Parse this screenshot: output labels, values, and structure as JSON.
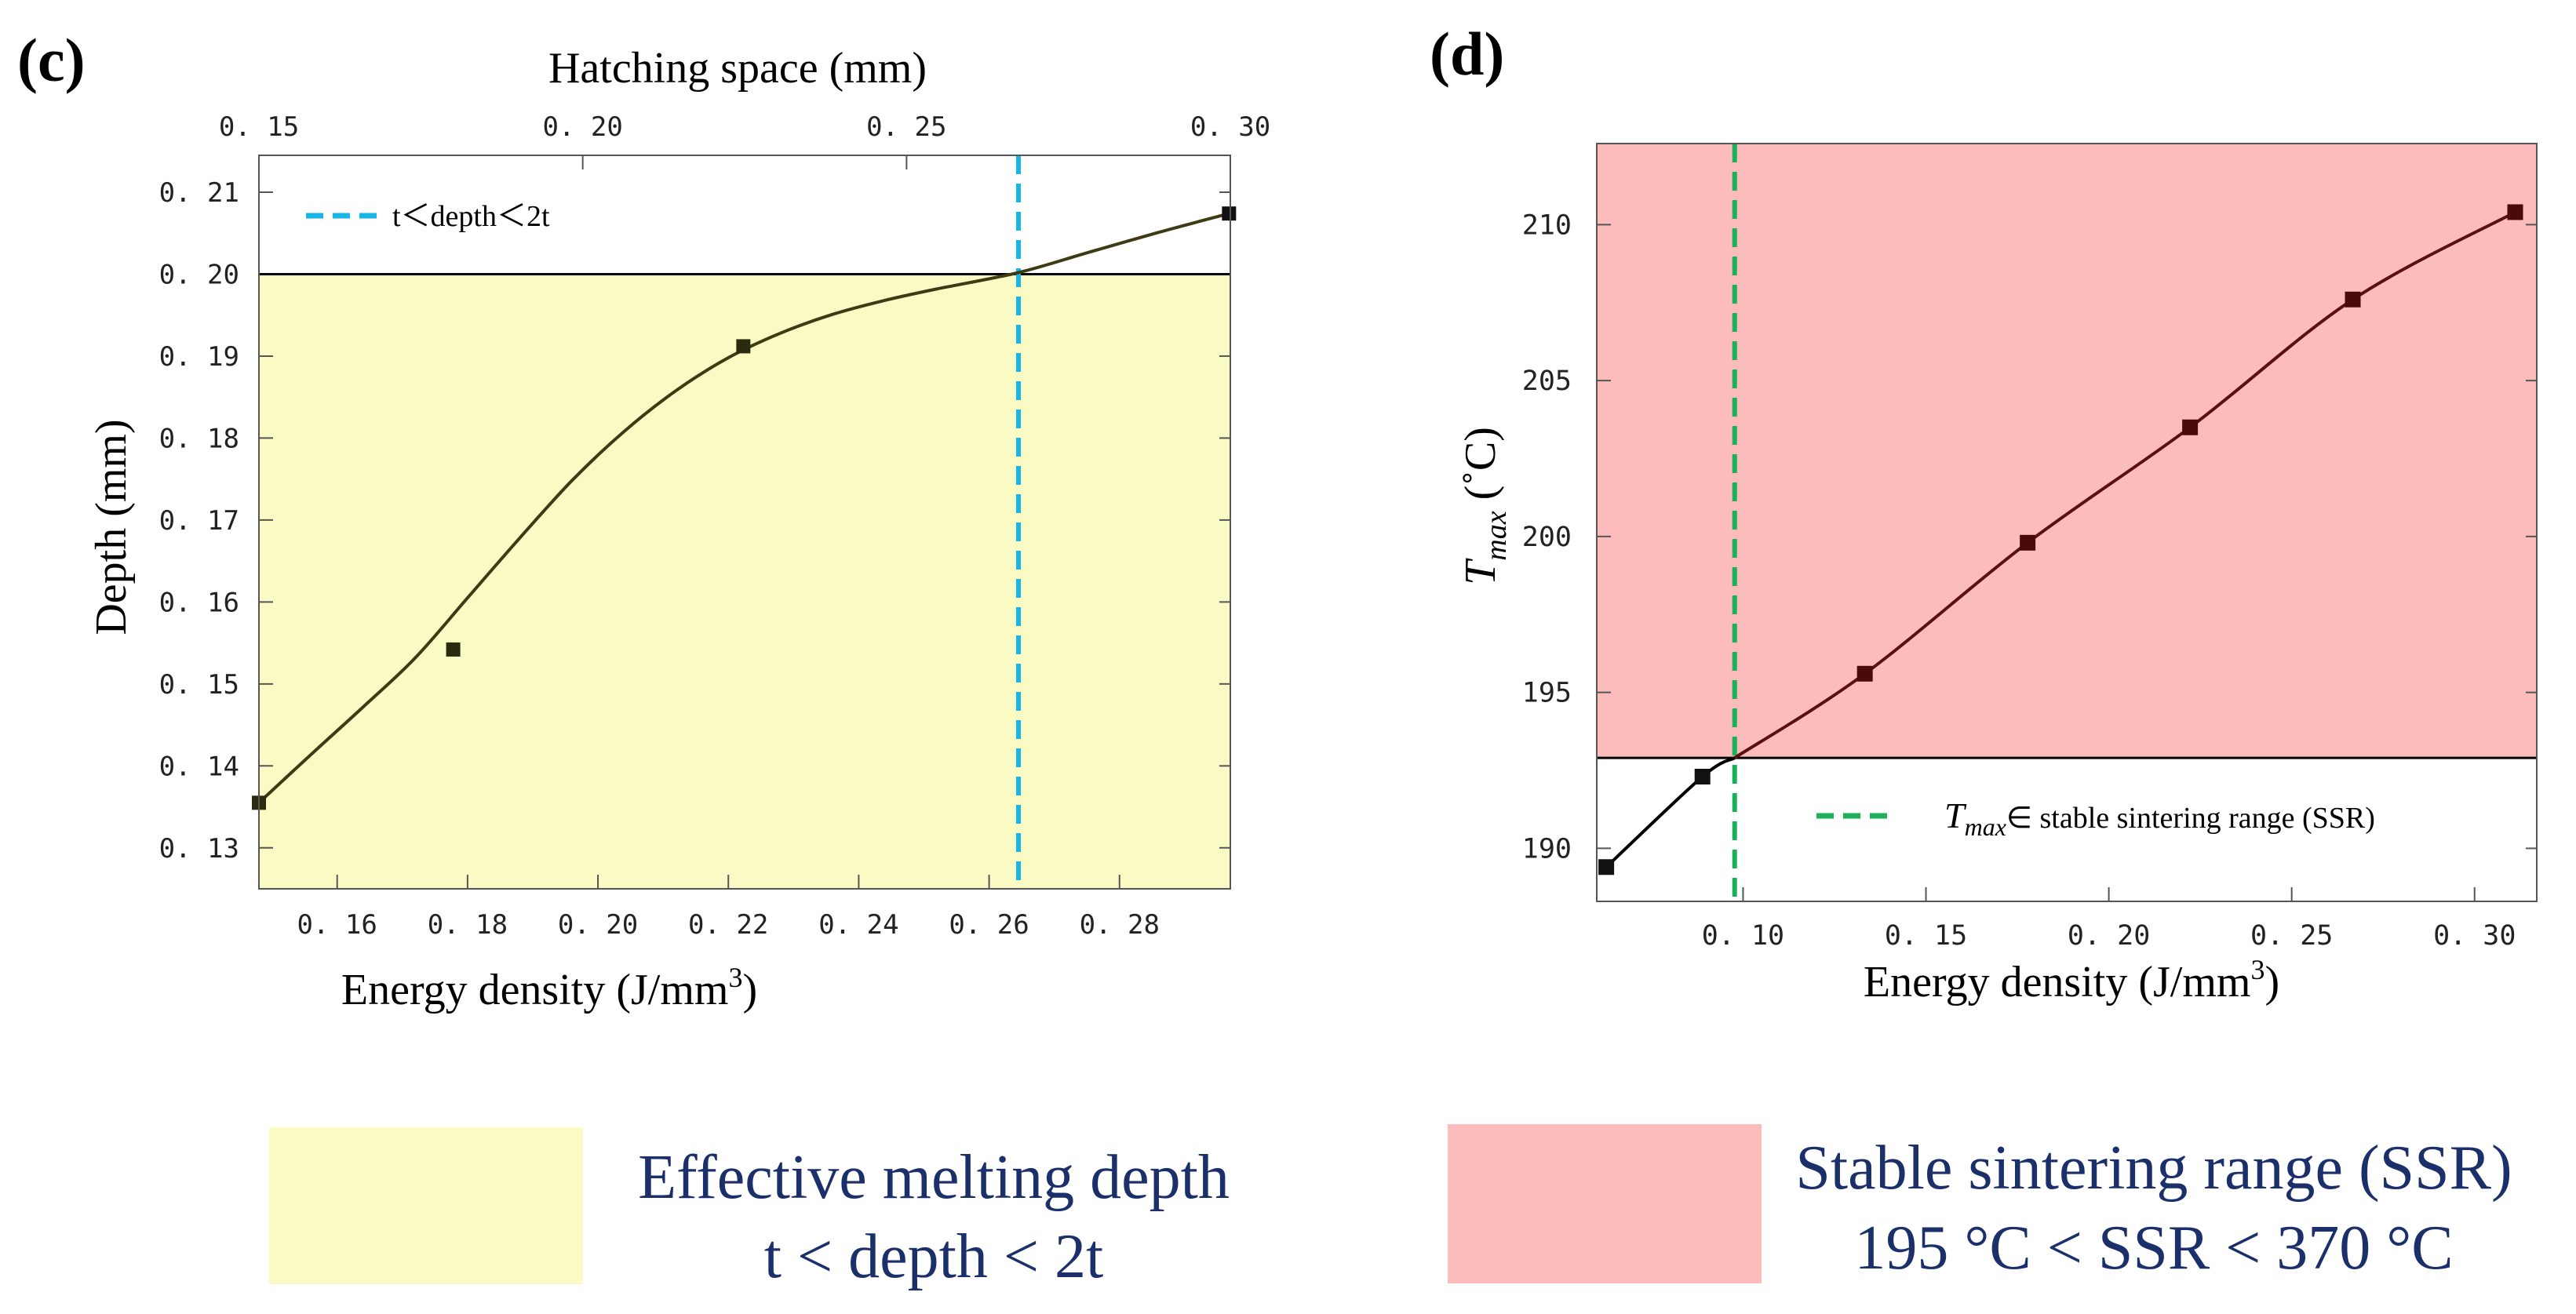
{
  "colors": {
    "yellow_fill": "#fafac4",
    "pink_fill": "#fcbcbc",
    "cyan_dash": "#17b6e6",
    "green_dash": "#19b15a",
    "curve_c": "#3d3a14",
    "curve_d_upper": "#5a1010",
    "marker": "#111111",
    "key_text": "#1b2f6b"
  },
  "chart_data": [
    {
      "panel_label": "(c)",
      "type": "scatter",
      "title": "",
      "top_axis_title": "Hatching space (mm)",
      "top_ticks": [
        "0. 15",
        "0. 20",
        "0. 25",
        "0. 30"
      ],
      "top_tick_values": [
        0.15,
        0.2,
        0.25,
        0.3
      ],
      "top_xlim": [
        0.15,
        0.3
      ],
      "xlabel_main": "Energy density (J/mm",
      "xlabel_sup": "3",
      "xlabel_close": ")",
      "ylabel": "Depth (mm)",
      "x_ticks": [
        "0. 16",
        "0. 18",
        "0. 20",
        "0. 22",
        "0. 24",
        "0. 26",
        "0. 28"
      ],
      "x_tick_values": [
        0.16,
        0.18,
        0.2,
        0.22,
        0.24,
        0.26,
        0.28
      ],
      "y_ticks": [
        "0. 13",
        "0. 14",
        "0. 15",
        "0. 16",
        "0. 17",
        "0. 18",
        "0. 19",
        "0. 20",
        "0. 21"
      ],
      "y_tick_values": [
        0.13,
        0.14,
        0.15,
        0.16,
        0.17,
        0.18,
        0.19,
        0.2,
        0.21
      ],
      "xlim": [
        0.148,
        0.297
      ],
      "ylim": [
        0.125,
        0.2145
      ],
      "points": [
        {
          "x": 0.148,
          "y": 0.1355
        },
        {
          "x": 0.1778,
          "y": 0.1542
        },
        {
          "x": 0.2223,
          "y": 0.1912
        },
        {
          "x": 0.2968,
          "y": 0.2074
        }
      ],
      "curve": [
        {
          "x": 0.148,
          "y": 0.1355
        },
        {
          "x": 0.156,
          "y": 0.1414
        },
        {
          "x": 0.164,
          "y": 0.1472
        },
        {
          "x": 0.172,
          "y": 0.1532
        },
        {
          "x": 0.18,
          "y": 0.1605
        },
        {
          "x": 0.188,
          "y": 0.1678
        },
        {
          "x": 0.196,
          "y": 0.1748
        },
        {
          "x": 0.204,
          "y": 0.1808
        },
        {
          "x": 0.212,
          "y": 0.1858
        },
        {
          "x": 0.22,
          "y": 0.1898
        },
        {
          "x": 0.228,
          "y": 0.1928
        },
        {
          "x": 0.236,
          "y": 0.1951
        },
        {
          "x": 0.244,
          "y": 0.1968
        },
        {
          "x": 0.252,
          "y": 0.1982
        },
        {
          "x": 0.2645,
          "y": 0.2002
        },
        {
          "x": 0.275,
          "y": 0.2026
        },
        {
          "x": 0.286,
          "y": 0.2051
        },
        {
          "x": 0.2968,
          "y": 0.2074
        }
      ],
      "threshold_y": 0.2,
      "vline_x": 0.2645,
      "legend": "t＜depth＜2t",
      "region": "yellow"
    },
    {
      "panel_label": "(d)",
      "type": "line",
      "title": "",
      "xlabel_main": "Energy density (J/mm",
      "xlabel_sup": "3",
      "xlabel_close": ")",
      "ylabel_main": "T",
      "ylabel_sub": "max",
      "ylabel_unit": " (˚C)",
      "x_ticks": [
        "0. 10",
        "0. 15",
        "0. 20",
        "0. 25",
        "0. 30"
      ],
      "x_tick_values": [
        0.1,
        0.15,
        0.2,
        0.25,
        0.3
      ],
      "y_ticks": [
        "190",
        "195",
        "200",
        "205",
        "210"
      ],
      "y_tick_values": [
        190,
        195,
        200,
        205,
        210
      ],
      "xlim": [
        0.06,
        0.317
      ],
      "ylim": [
        188.3,
        212.6
      ],
      "points": [
        {
          "x": 0.0626,
          "y": 189.4
        },
        {
          "x": 0.0889,
          "y": 192.3
        },
        {
          "x": 0.1333,
          "y": 195.6
        },
        {
          "x": 0.1778,
          "y": 199.8
        },
        {
          "x": 0.2222,
          "y": 203.5
        },
        {
          "x": 0.2667,
          "y": 207.6
        },
        {
          "x": 0.3111,
          "y": 210.4
        }
      ],
      "threshold_y": 192.9,
      "vline_x": 0.0977,
      "legend_main": "T",
      "legend_sub": "max",
      "legend_rest": "∈ stable sintering range (SSR)",
      "region": "pink"
    }
  ],
  "keys": {
    "yellow": {
      "line1": "Effective melting depth",
      "line2": "t < depth < 2t"
    },
    "pink": {
      "line1": "Stable sintering range (SSR)",
      "line2": "195 °C < SSR < 370 °C"
    }
  }
}
